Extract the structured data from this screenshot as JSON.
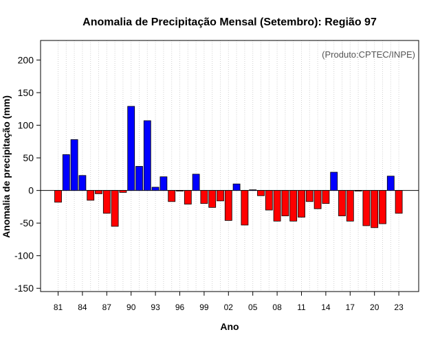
{
  "chart_data": {
    "type": "bar",
    "title": "Anomalia de Precipitação Mensal (Setembro): Região 97",
    "xlabel": "Ano",
    "ylabel": "Anomalia de precipitação (mm)",
    "credit": "(Produto:CPTEC/INPE)",
    "ylim": [
      -155,
      230
    ],
    "yticks": [
      -150,
      -100,
      -50,
      0,
      50,
      100,
      150,
      200
    ],
    "xtick_labels": [
      "81",
      "84",
      "87",
      "90",
      "93",
      "96",
      "99",
      "02",
      "05",
      "08",
      "11",
      "14",
      "17",
      "20",
      "23"
    ],
    "categories": [
      "1981",
      "1982",
      "1983",
      "1984",
      "1985",
      "1986",
      "1987",
      "1988",
      "1989",
      "1990",
      "1991",
      "1992",
      "1993",
      "1994",
      "1995",
      "1996",
      "1997",
      "1998",
      "1999",
      "2000",
      "2001",
      "2002",
      "2003",
      "2004",
      "2005",
      "2006",
      "2007",
      "2008",
      "2009",
      "2010",
      "2011",
      "2012",
      "2013",
      "2014",
      "2015",
      "2016",
      "2017",
      "2018",
      "2019",
      "2020",
      "2021",
      "2022",
      "2023"
    ],
    "values": [
      -18,
      55,
      78,
      23,
      -15,
      -5,
      -35,
      -55,
      -3,
      129,
      37,
      107,
      5,
      21,
      -17,
      -1,
      -21,
      25,
      -20,
      -26,
      -16,
      -46,
      10,
      -53,
      1,
      -8,
      -30,
      -47,
      -39,
      -47,
      -41,
      -17,
      -28,
      -20,
      28,
      -39,
      -47,
      -1,
      -54,
      -57,
      -51,
      22,
      -35
    ],
    "positive_color": "#0000ff",
    "negative_color": "#ff0000",
    "grid": true
  }
}
